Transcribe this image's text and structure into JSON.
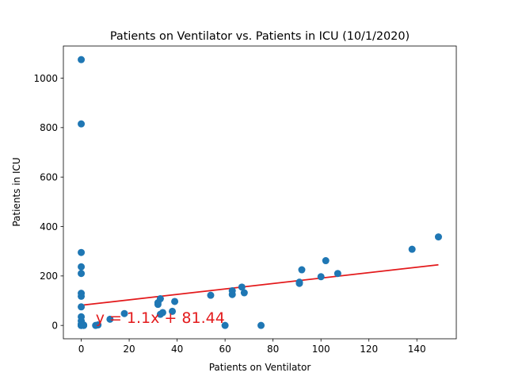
{
  "chart_data": {
    "type": "scatter",
    "title": "Patients on Ventilator vs. Patients in ICU (10/1/2020)",
    "xlabel": "Patients on Ventilator",
    "ylabel": "Patients in ICU",
    "xlim": [
      -7.45,
      156.45
    ],
    "ylim": [
      -54,
      1130
    ],
    "xticks": [
      0,
      20,
      40,
      60,
      80,
      100,
      120,
      140
    ],
    "yticks": [
      0,
      200,
      400,
      600,
      800,
      1000
    ],
    "grid": false,
    "points": [
      [
        0,
        1075
      ],
      [
        0,
        815
      ],
      [
        0,
        295
      ],
      [
        0,
        237
      ],
      [
        0,
        210
      ],
      [
        0,
        130
      ],
      [
        0,
        118
      ],
      [
        0,
        75
      ],
      [
        0,
        35
      ],
      [
        0,
        18
      ],
      [
        0,
        5
      ],
      [
        0,
        2
      ],
      [
        0,
        0
      ],
      [
        0,
        0
      ],
      [
        0,
        0
      ],
      [
        0,
        0
      ],
      [
        1,
        0
      ],
      [
        1,
        0
      ],
      [
        1,
        2
      ],
      [
        6,
        0
      ],
      [
        7,
        2
      ],
      [
        12,
        25
      ],
      [
        18,
        48
      ],
      [
        32,
        85
      ],
      [
        32,
        92
      ],
      [
        33,
        45
      ],
      [
        33,
        108
      ],
      [
        34,
        52
      ],
      [
        38,
        57
      ],
      [
        39,
        97
      ],
      [
        54,
        122
      ],
      [
        60,
        0
      ],
      [
        63,
        125
      ],
      [
        63,
        140
      ],
      [
        67,
        155
      ],
      [
        68,
        132
      ],
      [
        75,
        0
      ],
      [
        91,
        170
      ],
      [
        91,
        175
      ],
      [
        92,
        225
      ],
      [
        100,
        197
      ],
      [
        102,
        262
      ],
      [
        107,
        210
      ],
      [
        138,
        308
      ],
      [
        149,
        358
      ]
    ],
    "regression": {
      "slope": 1.1,
      "intercept": 81.44,
      "x_range": [
        0,
        149
      ],
      "label": "y = 1.1x + 81.44",
      "label_anchor": [
        6,
        10
      ]
    },
    "colors": {
      "points": "#1f77b4",
      "line": "#e31a1c",
      "label": "#e31a1c",
      "axes": "#000000"
    }
  }
}
